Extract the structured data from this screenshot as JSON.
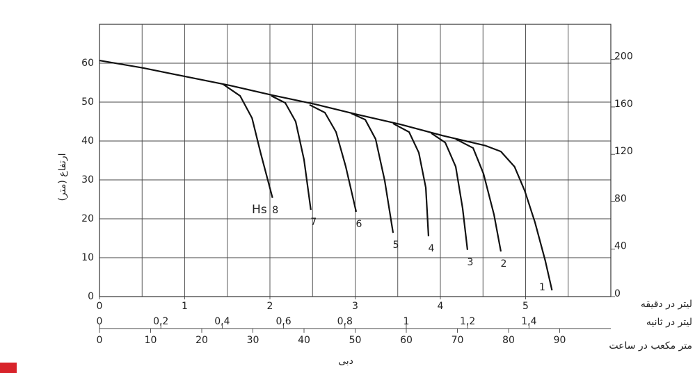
{
  "chart_data": {
    "type": "line",
    "xlabel": "دبی",
    "ylabel": "ارتفاع (متر)",
    "x_unit": "لیتر در دقیقه",
    "xlim": [
      0,
      6
    ],
    "xticks": [
      0,
      1,
      2,
      3,
      4,
      5
    ],
    "ylim": [
      0,
      70
    ],
    "yticks": [
      0,
      10,
      20,
      30,
      40,
      50,
      60
    ],
    "y2lim": [
      0,
      229.7
    ],
    "y2ticks": [
      0,
      40,
      80,
      120,
      160,
      200
    ],
    "grid": true,
    "color": "#111111",
    "extra_x_axes": [
      {
        "unit": "لیتر در ثانیه",
        "xlim": [
          0,
          1.6667
        ],
        "xticks": [
          0,
          {
            "value": 0.2,
            "label": "0,2"
          },
          {
            "value": 0.4,
            "label": "0,4"
          },
          {
            "value": 0.6,
            "label": "0,6"
          },
          {
            "value": 0.8,
            "label": "0,8"
          },
          1,
          {
            "value": 1.2,
            "label": "1,2"
          },
          {
            "value": 1.4,
            "label": "1,4"
          }
        ]
      },
      {
        "unit": "متر مکعب در ساعت",
        "xlim": [
          0,
          100
        ],
        "xticks": [
          0,
          10,
          20,
          30,
          40,
          50,
          60,
          70,
          80,
          90
        ]
      }
    ],
    "annotations": [
      "Hs"
    ],
    "series": [
      {
        "name": "1",
        "x": [
          0,
          0.506,
          1.004,
          1.527,
          2.024,
          2.522,
          3.028,
          3.527,
          4.024,
          4.53,
          4.71,
          4.87,
          4.99,
          5.11,
          5.23,
          5.31
        ],
        "values": [
          60.7,
          58.8,
          56.6,
          54.3,
          51.8,
          49.5,
          46.8,
          44.3,
          41.4,
          38.8,
          37.3,
          33.4,
          27.2,
          19.1,
          9.3,
          1.6
        ]
      },
      {
        "name": "2",
        "x": [
          4.18,
          4.384,
          4.506,
          4.629,
          4.71
        ],
        "values": [
          40.5,
          38.2,
          31.6,
          21.1,
          11.6
        ]
      },
      {
        "name": "3",
        "x": [
          3.894,
          4.057,
          4.18,
          4.261,
          4.318
        ],
        "values": [
          42.0,
          39.6,
          33.4,
          22.7,
          12.0
        ]
      },
      {
        "name": "4",
        "x": [
          3.445,
          3.633,
          3.747,
          3.829,
          3.861
        ],
        "values": [
          44.5,
          42.3,
          37.0,
          28.0,
          15.5
        ]
      },
      {
        "name": "5",
        "x": [
          2.955,
          3.118,
          3.24,
          3.347,
          3.445
        ],
        "values": [
          47.1,
          45.5,
          40.5,
          29.8,
          16.4
        ]
      },
      {
        "name": "6",
        "x": [
          2.465,
          2.645,
          2.776,
          2.89,
          3.012
        ],
        "values": [
          49.3,
          47.3,
          42.3,
          33.4,
          21.8
        ]
      },
      {
        "name": "7",
        "x": [
          2.016,
          2.18,
          2.302,
          2.4,
          2.48
        ],
        "values": [
          51.6,
          49.8,
          45.0,
          35.2,
          22.3
        ]
      },
      {
        "name": "8",
        "x": [
          1.45,
          1.65,
          1.79,
          1.89,
          2.03
        ],
        "values": [
          54.6,
          51.6,
          45.9,
          37.0,
          25.4
        ]
      }
    ]
  }
}
